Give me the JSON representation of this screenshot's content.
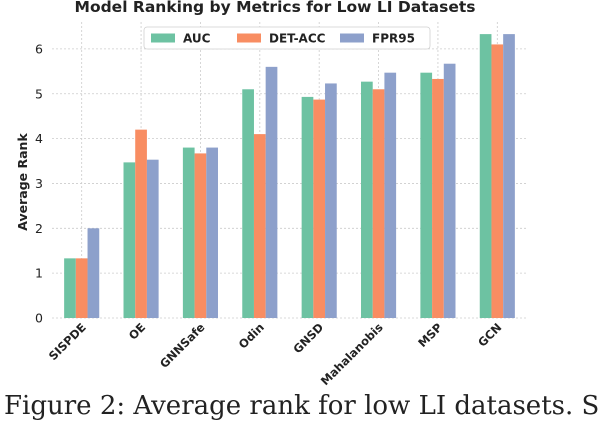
{
  "chart_data": {
    "type": "bar",
    "title": "Model Ranking by Metrics for Low LI Datasets",
    "xlabel": "",
    "ylabel": "Average Rank",
    "categories": [
      "SISPDE",
      "OE",
      "GNNSafe",
      "Odin",
      "GNSD",
      "Mahalanobis",
      "MSP",
      "GCN"
    ],
    "series": [
      {
        "name": "AUC",
        "color": "#6dc2a2",
        "values": [
          1.33,
          3.47,
          3.8,
          5.1,
          4.93,
          5.27,
          5.47,
          6.33
        ]
      },
      {
        "name": "DET-ACC",
        "color": "#f88d62",
        "values": [
          1.33,
          4.2,
          3.67,
          4.1,
          4.87,
          5.1,
          5.33,
          6.1
        ]
      },
      {
        "name": "FPR95",
        "color": "#8da0cb",
        "values": [
          2.0,
          3.53,
          3.8,
          5.6,
          5.23,
          5.47,
          5.67,
          6.33
        ]
      }
    ],
    "yticks": [
      0,
      1,
      2,
      3,
      4,
      5,
      6
    ],
    "ylim": [
      0,
      6.6
    ],
    "grid": true,
    "legend_position": "top-center"
  },
  "caption": "Figure 2: Average rank for low LI datasets. S"
}
